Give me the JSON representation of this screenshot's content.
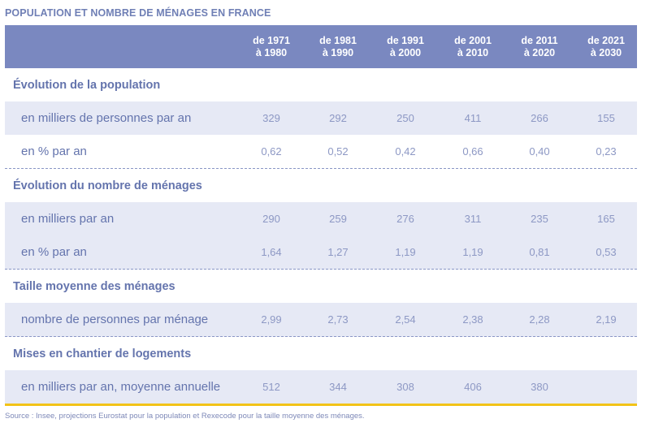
{
  "title": "POPULATION ET NOMBRE DE MÉNAGES EN FRANCE",
  "columns": [
    {
      "line1": "de 1971",
      "line2": "à 1980"
    },
    {
      "line1": "de 1981",
      "line2": "à 1990"
    },
    {
      "line1": "de 1991",
      "line2": "à 2000"
    },
    {
      "line1": "de 2001",
      "line2": "à 2010"
    },
    {
      "line1": "de 2011",
      "line2": "à 2020"
    },
    {
      "line1": "de 2021",
      "line2": "à 2030"
    }
  ],
  "sections": [
    {
      "label": "Évolution de la population",
      "rows": [
        {
          "label": "en milliers de personnes par an",
          "values": [
            "329",
            "292",
            "250",
            "411",
            "266",
            "155"
          ]
        },
        {
          "label": "en % par an",
          "values": [
            "0,62",
            "0,52",
            "0,42",
            "0,66",
            "0,40",
            "0,23"
          ]
        }
      ]
    },
    {
      "label": "Évolution du nombre de ménages",
      "rows": [
        {
          "label": "en milliers par an",
          "values": [
            "290",
            "259",
            "276",
            "311",
            "235",
            "165"
          ]
        },
        {
          "label": "en % par an",
          "values": [
            "1,64",
            "1,27",
            "1,19",
            "1,19",
            "0,81",
            "0,53"
          ]
        }
      ]
    },
    {
      "label": "Taille moyenne des ménages",
      "rows": [
        {
          "label": "nombre de personnes par ménage",
          "values": [
            "2,99",
            "2,73",
            "2,54",
            "2,38",
            "2,28",
            "2,19"
          ]
        }
      ]
    },
    {
      "label": "Mises en chantier de logements",
      "rows": [
        {
          "label": "en milliers par an, moyenne annuelle",
          "values": [
            "512",
            "344",
            "308",
            "406",
            "380",
            ""
          ]
        }
      ]
    }
  ],
  "source": "Source : Insee, projections Eurostat pour la population et Rexecode pour la taille moyenne des ménages.",
  "colors": {
    "header": "#7a88c0",
    "shade": "#e6e9f5",
    "accent": "#f2c318",
    "text": "#6474ad"
  }
}
